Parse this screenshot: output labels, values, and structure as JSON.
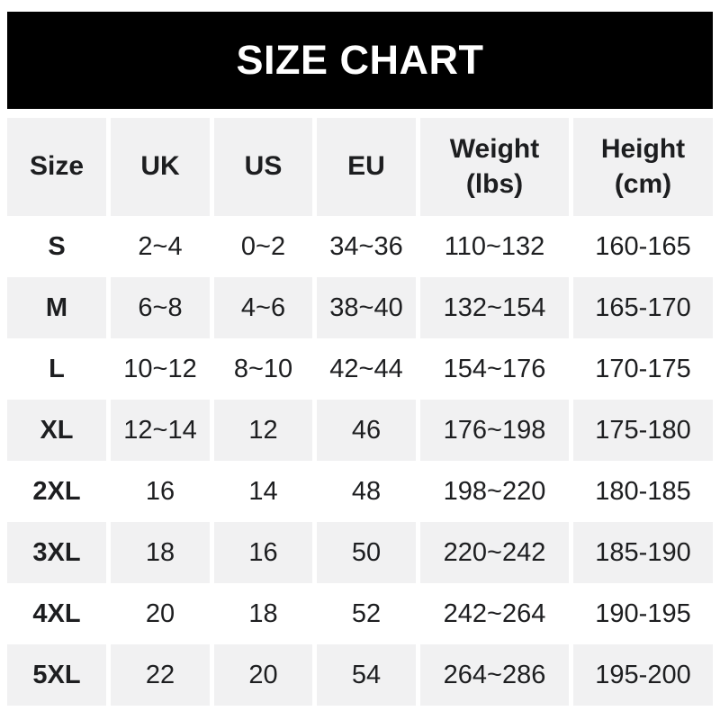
{
  "title": "SIZE CHART",
  "colors": {
    "banner_bg": "#000000",
    "banner_text": "#ffffff",
    "shaded_row_bg": "#f1f1f2",
    "text": "#1d1e20",
    "page_bg": "#ffffff"
  },
  "table": {
    "headers": [
      "Size",
      "UK",
      "US",
      "EU",
      "Weight\n(lbs)",
      "Height\n(cm)"
    ],
    "rows": [
      [
        "S",
        "2~4",
        "0~2",
        "34~36",
        "110~132",
        "160-165"
      ],
      [
        "M",
        "6~8",
        "4~6",
        "38~40",
        "132~154",
        "165-170"
      ],
      [
        "L",
        "10~12",
        "8~10",
        "42~44",
        "154~176",
        "170-175"
      ],
      [
        "XL",
        "12~14",
        "12",
        "46",
        "176~198",
        "175-180"
      ],
      [
        "2XL",
        "16",
        "14",
        "48",
        "198~220",
        "180-185"
      ],
      [
        "3XL",
        "18",
        "16",
        "50",
        "220~242",
        "185-190"
      ],
      [
        "4XL",
        "20",
        "18",
        "52",
        "242~264",
        "190-195"
      ],
      [
        "5XL",
        "22",
        "20",
        "54",
        "264~286",
        "195-200"
      ]
    ]
  },
  "chart_data": {
    "type": "table",
    "title": "SIZE CHART",
    "columns": [
      "Size",
      "UK",
      "US",
      "EU",
      "Weight (lbs)",
      "Height (cm)"
    ],
    "rows": [
      [
        "S",
        "2~4",
        "0~2",
        "34~36",
        "110~132",
        "160-165"
      ],
      [
        "M",
        "6~8",
        "4~6",
        "38~40",
        "132~154",
        "165-170"
      ],
      [
        "L",
        "10~12",
        "8~10",
        "42~44",
        "154~176",
        "170-175"
      ],
      [
        "XL",
        "12~14",
        "12",
        "46",
        "176~198",
        "175-180"
      ],
      [
        "2XL",
        "16",
        "14",
        "48",
        "198~220",
        "180-185"
      ],
      [
        "3XL",
        "18",
        "16",
        "50",
        "220~242",
        "185-190"
      ],
      [
        "4XL",
        "20",
        "18",
        "52",
        "242~264",
        "190-195"
      ],
      [
        "5XL",
        "22",
        "20",
        "54",
        "264~286",
        "195-200"
      ]
    ],
    "layout": {
      "alternating_rows": true,
      "shaded_rows": [
        "header",
        "M",
        "XL",
        "3XL",
        "5XL"
      ],
      "column_gutters": true
    }
  }
}
